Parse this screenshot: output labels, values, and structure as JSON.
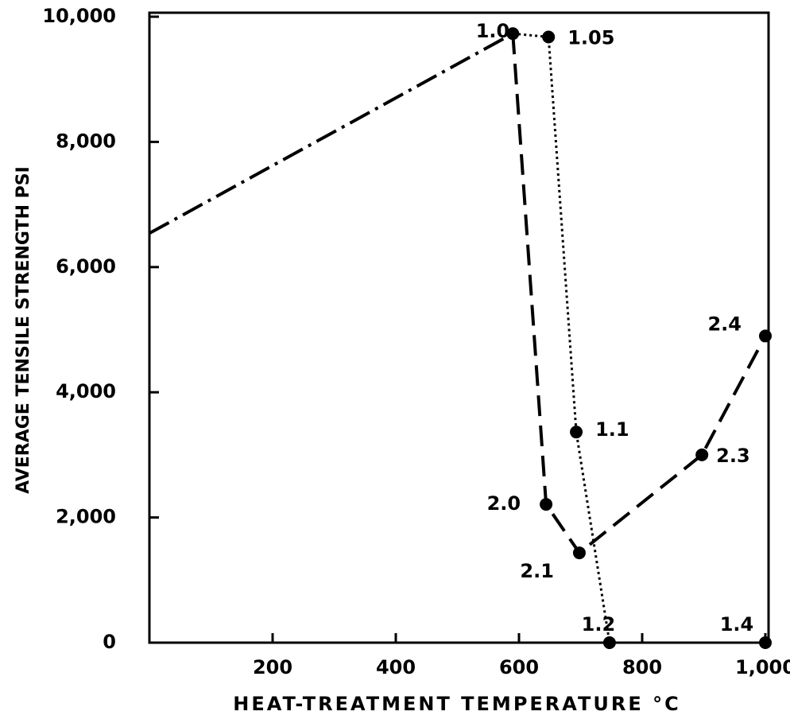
{
  "chart_data": {
    "type": "line",
    "xlabel": "HEAT-TREATMENT TEMPERATURE °C",
    "ylabel": "AVERAGE TENSILE STRENGTH PSI",
    "xlim": [
      0,
      1000
    ],
    "ylim": [
      0,
      10000
    ],
    "xticks": [
      200,
      400,
      600,
      800,
      {
        "value": 1000,
        "label": "1,000"
      }
    ],
    "yticks": [
      0,
      {
        "value": 2000,
        "label": "2,000"
      },
      {
        "value": 4000,
        "label": "4,000"
      },
      {
        "value": 6000,
        "label": "6,000"
      },
      {
        "value": 8000,
        "label": "8,000"
      },
      {
        "value": 10000,
        "label": "10,000"
      }
    ],
    "series": [
      {
        "color": "#000000",
        "style": "dashdot",
        "x": [
          0,
          590
        ],
        "values": [
          6540,
          9730
        ]
      },
      {
        "color": "#000000",
        "style": "dashed",
        "x": [
          590,
          644,
          698,
          897,
          1000
        ],
        "values": [
          9730,
          2210,
          1435,
          3000,
          4900
        ],
        "point_labels": [
          null,
          "2.0",
          "2.1",
          "2.3",
          "2.4"
        ]
      },
      {
        "color": "#000000",
        "style": "dotted",
        "x": [
          590,
          648,
          693,
          747,
          1000
        ],
        "values": [
          9730,
          9676,
          3365,
          0,
          0
        ],
        "point_labels": [
          "1.0",
          "1.05",
          "1.1",
          "1.2",
          "1.4"
        ]
      }
    ]
  }
}
